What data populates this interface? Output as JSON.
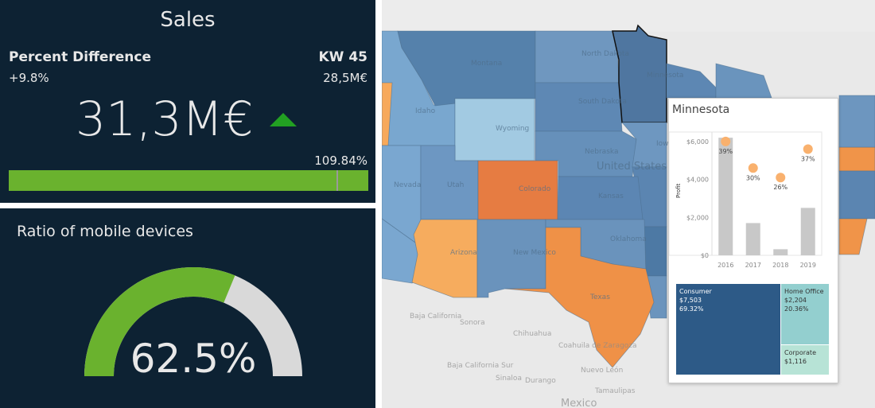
{
  "sales": {
    "title": "Sales",
    "pd_label": "Percent Difference",
    "pd_value": "+9.8%",
    "kw_label": "KW 45",
    "kw_value": "28,5M€",
    "main_value": "31,3M€",
    "trend": "up",
    "trend_icon": "triangle-up-icon",
    "progress_label": "109.84%",
    "progress_percent": 109.84,
    "bar_color": "#6ab22e"
  },
  "mobile": {
    "title": "Ratio of mobile devices",
    "value_label": "62.5%",
    "value_percent": 62.5,
    "fill_color": "#6ab22e",
    "track_color": "#d9d9d9"
  },
  "map": {
    "labels": {
      "montana": "Montana",
      "idaho": "Idaho",
      "wyoming": "Wyoming",
      "north_dakota": "North Dakota",
      "south_dakota": "South Dakota",
      "minnesota": "Minnesota",
      "nebraska": "Nebraska",
      "iowa": "Iowa",
      "united_states": "United States",
      "nevada": "Nevada",
      "utah": "Utah",
      "colorado": "Colorado",
      "kansas": "Kansas",
      "arizona": "Arizona",
      "new_mexico": "New Mexico",
      "oklahoma": "Oklahoma",
      "texas": "Texas",
      "baja_california": "Baja California",
      "sonora": "Sonora",
      "chihuahua": "Chihuahua",
      "coahuila": "Coahuila de Zaragoza",
      "baja_california_sur": "Baja California Sur",
      "sinaloa": "Sinaloa",
      "durango": "Durango",
      "nuevo_leon": "Nuevo León",
      "tamaulipas": "Tamaulipas",
      "mexico": "Mexico"
    }
  },
  "tooltip": {
    "title": "Minnesota",
    "chart_data": {
      "type": "bar",
      "ylabel": "Profit",
      "categories": [
        "2016",
        "2017",
        "2018",
        "2019"
      ],
      "values": [
        6200,
        1700,
        320,
        2500
      ],
      "ratio_labels": [
        "39%",
        "30%",
        "26%",
        "37%"
      ],
      "ratio_positions": [
        6000,
        4600,
        4100,
        5600
      ],
      "yticks": [
        "$0",
        "$2,000",
        "$4,000",
        "$6,000"
      ],
      "ylim": [
        0,
        6500
      ]
    },
    "segments": [
      {
        "name": "Consumer",
        "value": "$7,503",
        "pct": "69.32%",
        "color": "#2d5a87"
      },
      {
        "name": "Home Office",
        "value": "$2,204",
        "pct": "20.36%",
        "color": "#93cfcf"
      },
      {
        "name": "Corporate",
        "value": "$1,116",
        "color": "#b7e3d6"
      }
    ]
  }
}
